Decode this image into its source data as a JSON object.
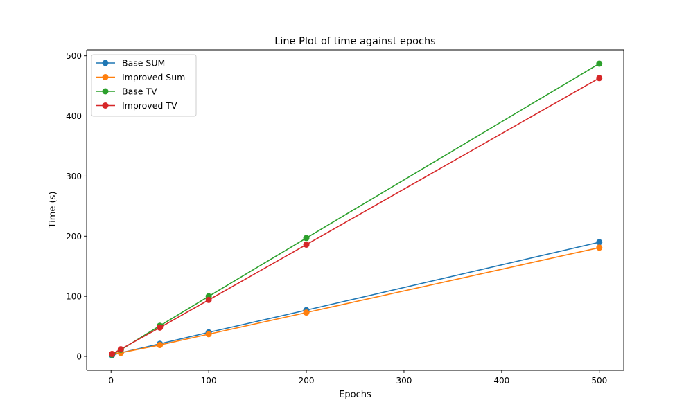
{
  "chart_data": {
    "type": "line",
    "title": "Line Plot of time against epochs",
    "xlabel": "Epochs",
    "ylabel": "Time (s)",
    "x": [
      1,
      10,
      50,
      100,
      200,
      500
    ],
    "xlim": [
      -25,
      525
    ],
    "ylim": [
      -23,
      510
    ],
    "xticks": [
      0,
      100,
      200,
      300,
      400,
      500
    ],
    "yticks": [
      0,
      100,
      200,
      300,
      400,
      500
    ],
    "grid": false,
    "legend_position": "upper-left",
    "series": [
      {
        "name": "Base SUM",
        "color": "#1f77b4",
        "values": [
          2,
          6,
          21,
          40,
          77,
          190
        ]
      },
      {
        "name": "Improved Sum",
        "color": "#ff7f0e",
        "values": [
          4,
          6,
          19,
          37,
          73,
          181
        ]
      },
      {
        "name": "Base TV",
        "color": "#2ca02c",
        "values": [
          3,
          11,
          51,
          100,
          197,
          487
        ]
      },
      {
        "name": "Improved TV",
        "color": "#d62728",
        "values": [
          4,
          12,
          48,
          94,
          186,
          463
        ]
      }
    ]
  }
}
